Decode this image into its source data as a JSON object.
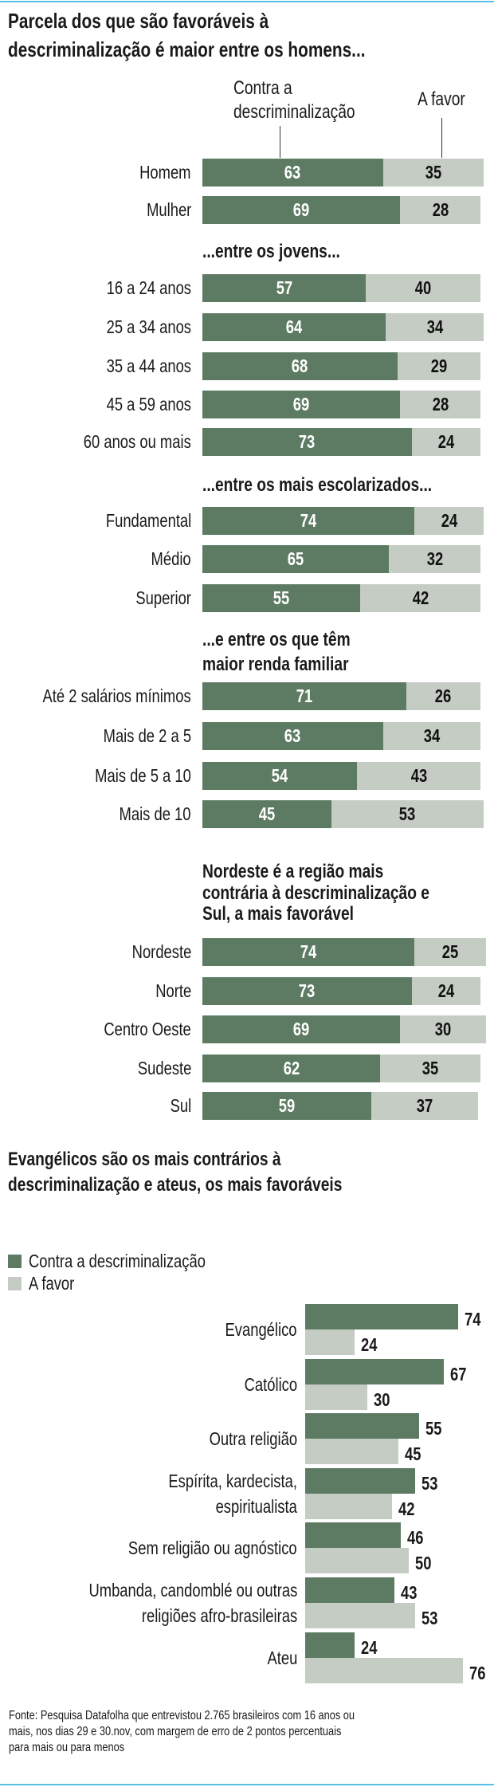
{
  "colors": {
    "contra": "#5d7b63",
    "favor": "#c4ccc3",
    "rule": "#58bfe6"
  },
  "header": {
    "title_lines": [
      "Parcela dos que são favoráveis à",
      "descriminalização é maior entre os homens..."
    ],
    "col_contra": [
      "Contra a",
      "descriminalização"
    ],
    "col_favor": "A favor"
  },
  "chart_data": [
    {
      "type": "bar",
      "stacked": true,
      "orientation": "horizontal",
      "series_names": [
        "Contra a descriminalização",
        "A favor"
      ],
      "groups": [
        {
          "title": [],
          "categories": [
            "Homem",
            "Mulher"
          ],
          "contra": [
            63,
            69
          ],
          "favor": [
            35,
            28
          ]
        },
        {
          "title": [
            "...entre os jovens..."
          ],
          "categories": [
            "16 a 24 anos",
            "25 a 34 anos",
            "35 a 44 anos",
            "45 a 59 anos",
            "60 anos ou mais"
          ],
          "contra": [
            57,
            64,
            68,
            69,
            73
          ],
          "favor": [
            40,
            34,
            29,
            28,
            24
          ]
        },
        {
          "title": [
            "...entre os mais escolarizados..."
          ],
          "categories": [
            "Fundamental",
            "Médio",
            "Superior"
          ],
          "contra": [
            74,
            65,
            55
          ],
          "favor": [
            24,
            32,
            42
          ]
        },
        {
          "title": [
            "...e entre os que têm",
            "maior renda familiar"
          ],
          "categories": [
            "Até 2 salários mínimos",
            "Mais de 2 a 5",
            "Mais de 5 a 10",
            "Mais de 10"
          ],
          "contra": [
            71,
            63,
            54,
            45
          ],
          "favor": [
            26,
            34,
            43,
            53
          ]
        },
        {
          "title": [
            "Nordeste é a região mais",
            "contrária à descriminalização e",
            "Sul, a mais favorável"
          ],
          "categories": [
            "Nordeste",
            "Norte",
            "Centro Oeste",
            "Sudeste",
            "Sul"
          ],
          "contra": [
            74,
            73,
            69,
            62,
            59
          ],
          "favor": [
            25,
            24,
            30,
            35,
            37
          ]
        }
      ]
    },
    {
      "type": "bar",
      "orientation": "horizontal",
      "title": [
        "Evangélicos são os mais contrários à",
        "descriminalização e ateus, os mais favoráveis"
      ],
      "legend": [
        "Contra a descriminalização",
        "A favor"
      ],
      "legend_position": "top-left",
      "categories": [
        [
          "Evangélico"
        ],
        [
          "Católico"
        ],
        [
          "Outra religião"
        ],
        [
          "Espírita, kardecista,",
          "espiritualista"
        ],
        [
          "Sem religião ou agnóstico"
        ],
        [
          "Umbanda, candomblé ou outras",
          "religiões afro-brasileiras"
        ],
        [
          "Ateu"
        ]
      ],
      "series": [
        {
          "name": "Contra a descriminalização",
          "values": [
            74,
            67,
            55,
            53,
            46,
            43,
            24
          ]
        },
        {
          "name": "A favor",
          "values": [
            24,
            30,
            45,
            42,
            50,
            53,
            76
          ]
        }
      ]
    }
  ],
  "footer": {
    "lines": [
      "Fonte: Pesquisa Datafolha que entrevistou 2.765 brasileiros com 16 anos ou",
      "mais, nos dias 29 e 30.nov, com margem de erro de 2 pontos percentuais",
      "para mais ou para menos"
    ]
  }
}
